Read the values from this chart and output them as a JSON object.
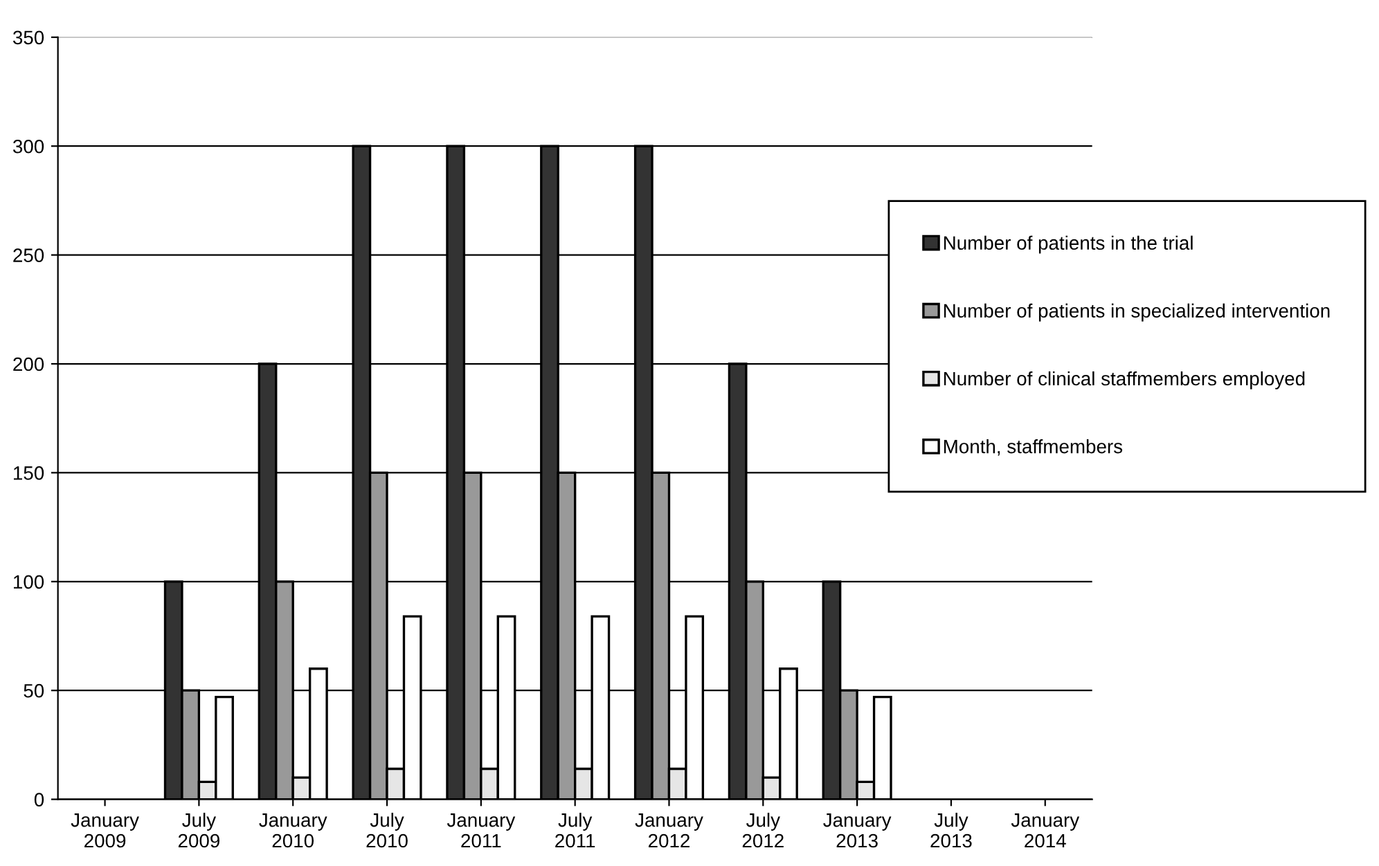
{
  "chart_data": {
    "type": "bar",
    "categories": [
      "January\n2009",
      "July\n2009",
      "January\n2010",
      "July\n2010",
      "January\n2011",
      "July\n2011",
      "January\n2012",
      "July\n2012",
      "January\n2013",
      "July\n2013",
      "January\n2014"
    ],
    "series": [
      {
        "name": "Number of patients in the trial",
        "color": "#333333",
        "values": [
          0,
          100,
          200,
          300,
          300,
          300,
          300,
          200,
          100,
          0,
          0
        ]
      },
      {
        "name": "Number of patients in specialized intervention",
        "color": "#999999",
        "values": [
          0,
          50,
          100,
          150,
          150,
          150,
          150,
          100,
          50,
          0,
          0
        ]
      },
      {
        "name": "Number of clinical staffmembers employed",
        "color": "#e6e6e6",
        "values": [
          0,
          8,
          10,
          14,
          14,
          14,
          14,
          10,
          8,
          0,
          0
        ]
      },
      {
        "name": "Month, staffmembers",
        "color": "#ffffff",
        "values": [
          0,
          47,
          60,
          84,
          84,
          84,
          84,
          60,
          47,
          0,
          0
        ]
      }
    ],
    "ylim": [
      0,
      350
    ],
    "yticks": [
      0,
      50,
      100,
      150,
      200,
      250,
      300,
      350
    ],
    "grid": "y",
    "legend": "right"
  }
}
